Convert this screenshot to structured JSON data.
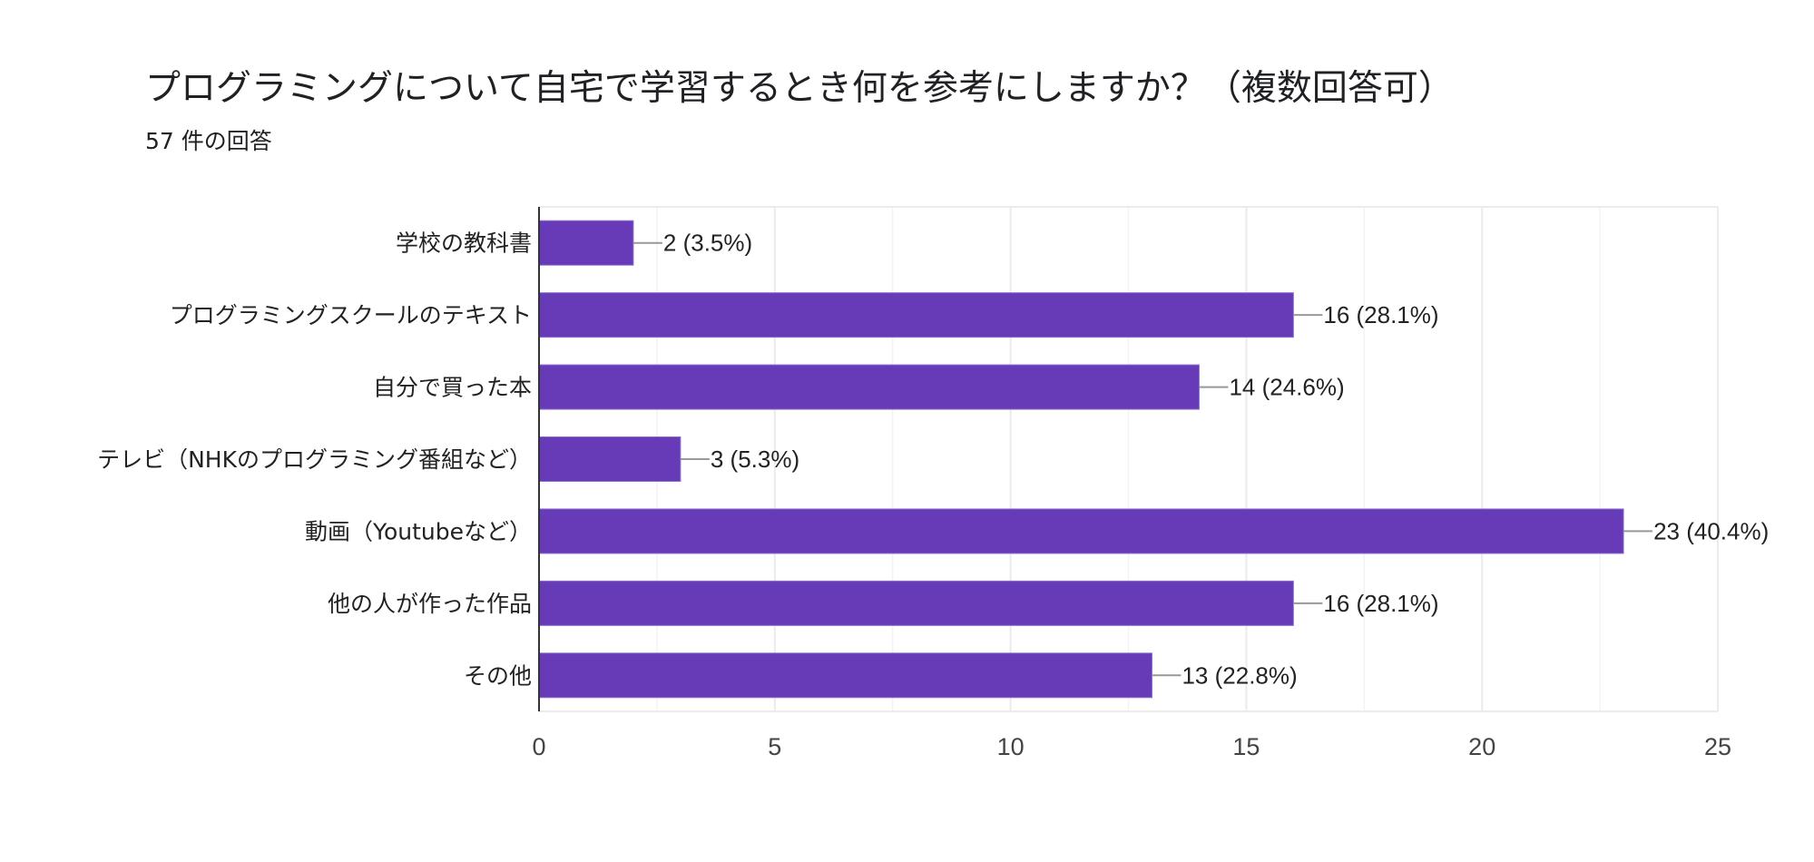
{
  "chart_data": {
    "type": "bar",
    "orientation": "horizontal",
    "title": "プログラミングについて自宅で学習するとき何を参考にしますか？（複数回答可）",
    "subtitle": "57 件の回答",
    "categories": [
      "学校の教科書",
      "プログラミングスクールのテキスト",
      "自分で買った本",
      "テレビ（NHKのプログラミング番組など）",
      "動画（Youtubeなど）",
      "他の人が作った作品",
      "その他"
    ],
    "values": [
      2,
      16,
      14,
      3,
      23,
      16,
      13
    ],
    "data_labels": [
      "2 (3.5%)",
      "16 (28.1%)",
      "14 (24.6%)",
      "3 (5.3%)",
      "23 (40.4%)",
      "16 (28.1%)",
      "13 (22.8%)"
    ],
    "xlim": [
      0,
      25
    ],
    "xticks": [
      "0",
      "5",
      "10",
      "15",
      "20",
      "25"
    ],
    "grid": true,
    "bar_color": "#673ab7"
  }
}
